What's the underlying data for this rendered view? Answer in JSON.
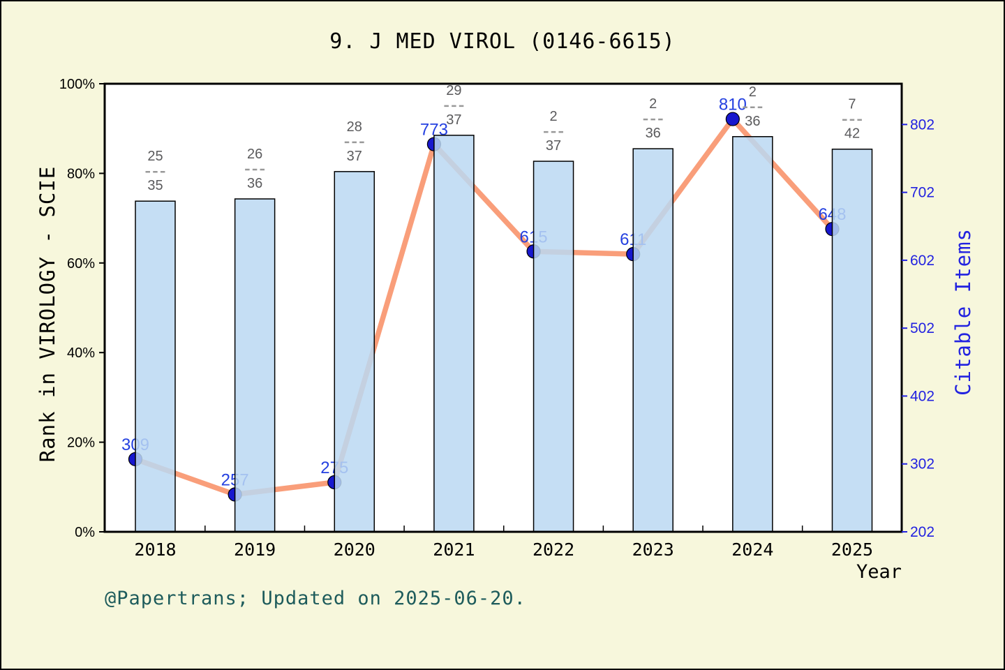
{
  "title": "9. J MED VIROL (0146-6615)",
  "footer": "@Papertrans; Updated on 2025-06-20.",
  "colors": {
    "background": "#F7F7DC",
    "plot_background": "#FFFFFF",
    "frame": "#000000",
    "bar_fill": "#BBD8F2",
    "bar_edge": "#000000",
    "line": "#F99E7A",
    "marker": "#1717CE",
    "point_label": "#2440E0",
    "rank_label": "#5A5A5C",
    "rank_dash": "#999999",
    "right_axis_blue": "#2222E0",
    "footer_teal": "#1D5B5B"
  },
  "chart_data": {
    "type": "combo-bar-line",
    "x": [
      "2018",
      "2019",
      "2020",
      "2021",
      "2022",
      "2023",
      "2024",
      "2025"
    ],
    "bar_series": {
      "name": "Rank in VIROLOGY - SCIE",
      "axis": "left",
      "unit": "%",
      "values": [
        73.8,
        74.3,
        80.4,
        88.5,
        82.7,
        85.5,
        88.2,
        85.4
      ],
      "rank_labels": [
        {
          "num": "25",
          "den": "35"
        },
        {
          "num": "26",
          "den": "36"
        },
        {
          "num": "28",
          "den": "37"
        },
        {
          "num": "29",
          "den": "37"
        },
        {
          "num": "2",
          "den": "37"
        },
        {
          "num": "2",
          "den": "36"
        },
        {
          "num": "2",
          "den": "36"
        },
        {
          "num": "7",
          "den": "42"
        }
      ]
    },
    "line_series": {
      "name": "Citable Items",
      "axis": "right",
      "values": [
        309,
        257,
        275,
        773,
        615,
        611,
        810,
        648
      ],
      "point_labels": [
        "309",
        "257",
        "275",
        "773",
        "615",
        "611",
        "810",
        "648"
      ]
    },
    "left_axis": {
      "label": "Rank in VIROLOGY - SCIE",
      "min": 0,
      "max": 100,
      "ticks": [
        "0%",
        "20%",
        "40%",
        "60%",
        "80%",
        "100%"
      ]
    },
    "right_axis": {
      "label": "Citable Items",
      "min": 202,
      "max": 862,
      "ticks": [
        202,
        302,
        402,
        502,
        602,
        702,
        802
      ]
    },
    "x_axis": {
      "label": "Year"
    },
    "grid": false,
    "legend": "none"
  }
}
